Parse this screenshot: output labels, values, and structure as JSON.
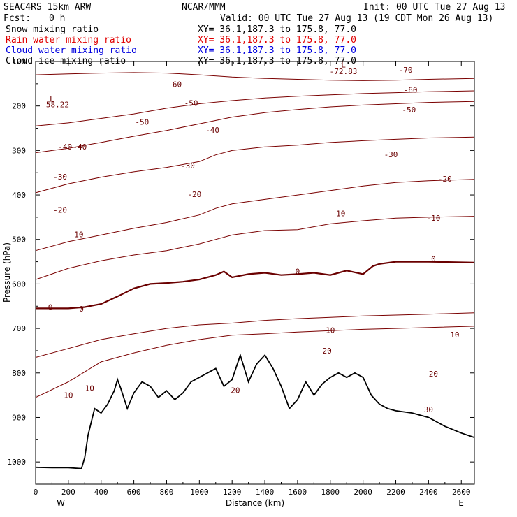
{
  "header": {
    "model": "SEAC4RS 15km ARW",
    "center": "NCAR/MMM",
    "init": "Init: 00 UTC Tue 27 Aug 13",
    "fcst_label": "Fcst:",
    "fcst_value": "0 h",
    "valid": "Valid: 00 UTC Tue 27 Aug 13 (19 CDT Mon 26 Aug 13)",
    "fields": [
      {
        "name": "Snow mixing ratio",
        "xy": "XY=  36.1,187.3 to 175.8, 77.0",
        "color": "#000000"
      },
      {
        "name": "Rain water mixing ratio",
        "xy": "XY=  36.1,187.3 to 175.8, 77.0",
        "color": "#e00000"
      },
      {
        "name": "Cloud water mixing ratio",
        "xy": "XY=  36.1,187.3 to 175.8, 77.0",
        "color": "#0000e0"
      },
      {
        "name": "Cloud ice mixing ratio",
        "xy": "XY=  36.1,187.3 to 175.8, 77.0",
        "color": "#000000"
      }
    ]
  },
  "chart_data": {
    "type": "line",
    "title": "",
    "xlabel": "Distance (km)",
    "ylabel": "Pressure (hPa)",
    "xlim": [
      0,
      2680
    ],
    "ylim": [
      1050,
      100
    ],
    "x_ticks": [
      0,
      200,
      400,
      600,
      800,
      1000,
      1200,
      1400,
      1600,
      1800,
      2000,
      2200,
      2400,
      2600
    ],
    "y_ticks": [
      100,
      200,
      300,
      400,
      500,
      600,
      700,
      800,
      900,
      1000
    ],
    "x_end_labels": {
      "left": "W",
      "right": "E"
    },
    "line_color": "#7a0000",
    "zero_line_color": "#6a0000",
    "terrain_color": "#000000",
    "series": [
      {
        "name": "0",
        "x": [
          0,
          100,
          200,
          300,
          400,
          500,
          600,
          700,
          800,
          900,
          1000,
          1100,
          1150,
          1200,
          1300,
          1400,
          1500,
          1600,
          1700,
          1800,
          1900,
          2000,
          2060,
          2100,
          2200,
          2400,
          2680
        ],
        "y": [
          655,
          655,
          655,
          652,
          645,
          628,
          610,
          600,
          598,
          595,
          590,
          580,
          572,
          585,
          578,
          575,
          580,
          578,
          575,
          580,
          570,
          578,
          560,
          555,
          550,
          550,
          552
        ]
      },
      {
        "name": "-10",
        "x": [
          0,
          200,
          400,
          600,
          800,
          1000,
          1100,
          1200,
          1400,
          1600,
          1800,
          2000,
          2200,
          2400,
          2680
        ],
        "y": [
          590,
          565,
          548,
          535,
          525,
          510,
          500,
          490,
          480,
          478,
          465,
          458,
          452,
          450,
          448
        ]
      },
      {
        "name": "-20",
        "x": [
          0,
          200,
          400,
          600,
          800,
          1000,
          1100,
          1200,
          1400,
          1600,
          1800,
          2000,
          2200,
          2400,
          2680
        ],
        "y": [
          525,
          505,
          490,
          475,
          462,
          445,
          430,
          420,
          410,
          400,
          390,
          380,
          372,
          368,
          365
        ]
      },
      {
        "name": "-30",
        "x": [
          0,
          200,
          400,
          600,
          800,
          1000,
          1100,
          1200,
          1400,
          1600,
          1800,
          2000,
          2200,
          2400,
          2680
        ],
        "y": [
          395,
          375,
          360,
          348,
          338,
          325,
          310,
          300,
          292,
          288,
          282,
          278,
          275,
          272,
          270
        ]
      },
      {
        "name": "-40",
        "x": [
          0,
          200,
          400,
          600,
          800,
          1000,
          1200,
          1400,
          1600,
          1800,
          2000,
          2200,
          2400,
          2680
        ],
        "y": [
          305,
          295,
          282,
          268,
          255,
          240,
          225,
          215,
          208,
          202,
          198,
          195,
          192,
          190
        ]
      },
      {
        "name": "-50",
        "x": [
          0,
          200,
          400,
          600,
          800,
          1000,
          1200,
          1400,
          1600,
          1800,
          2000,
          2200,
          2400,
          2680
        ],
        "y": [
          245,
          238,
          228,
          218,
          205,
          195,
          188,
          182,
          178,
          175,
          172,
          170,
          168,
          166
        ]
      },
      {
        "name": "-60",
        "x": [
          0,
          200,
          400,
          600,
          800,
          1000,
          1200,
          1400,
          1600,
          1800,
          2000,
          2200,
          2400,
          2680
        ],
        "y": [
          130,
          128,
          126,
          125,
          126,
          130,
          135,
          138,
          140,
          142,
          143,
          142,
          140,
          138
        ]
      },
      {
        "name": "10",
        "x": [
          0,
          200,
          400,
          600,
          800,
          1000,
          1200,
          1400,
          1600,
          1800,
          2000,
          2200,
          2400,
          2680
        ],
        "y": [
          855,
          820,
          775,
          755,
          738,
          725,
          715,
          712,
          708,
          705,
          702,
          700,
          698,
          695
        ]
      },
      {
        "name": "20",
        "x": [
          0,
          200,
          400,
          600,
          800,
          1000,
          1200,
          1400,
          1600,
          1800,
          2000,
          2200,
          2400,
          2680
        ],
        "y": [
          765,
          745,
          725,
          712,
          700,
          692,
          688,
          682,
          678,
          675,
          672,
          670,
          668,
          665
        ]
      }
    ],
    "terrain": {
      "x": [
        0,
        100,
        200,
        280,
        300,
        320,
        360,
        400,
        440,
        480,
        500,
        520,
        560,
        600,
        650,
        700,
        750,
        800,
        850,
        900,
        950,
        1000,
        1050,
        1100,
        1150,
        1200,
        1250,
        1300,
        1350,
        1400,
        1450,
        1500,
        1550,
        1600,
        1650,
        1700,
        1750,
        1800,
        1850,
        1900,
        1950,
        2000,
        2050,
        2100,
        2150,
        2200,
        2300,
        2400,
        2500,
        2600,
        2680
      ],
      "y": [
        1012,
        1013,
        1013,
        1015,
        990,
        940,
        880,
        890,
        870,
        840,
        815,
        835,
        880,
        845,
        820,
        830,
        855,
        840,
        860,
        845,
        820,
        810,
        800,
        790,
        830,
        815,
        760,
        820,
        780,
        760,
        790,
        830,
        880,
        860,
        820,
        850,
        825,
        810,
        800,
        810,
        800,
        810,
        850,
        870,
        880,
        885,
        890,
        900,
        920,
        935,
        945
      ]
    },
    "annotations": [
      {
        "text": "L",
        "x": 100,
        "y": 190
      },
      {
        "text": "-58.22",
        "x": 120,
        "y": 203
      },
      {
        "text": "-72.83",
        "x": 1880,
        "y": 128
      },
      {
        "text": "L",
        "x": 1880,
        "y": 113
      },
      {
        "text": "-70",
        "x": 2260,
        "y": 125
      }
    ],
    "contour_labels": [
      {
        "text": "-60",
        "x": 850,
        "y": 157
      },
      {
        "text": "-60",
        "x": 2290,
        "y": 170
      },
      {
        "text": "-50",
        "x": 950,
        "y": 200
      },
      {
        "text": "-50",
        "x": 650,
        "y": 242
      },
      {
        "text": "-50",
        "x": 2280,
        "y": 215
      },
      {
        "text": "-40",
        "x": 180,
        "y": 298
      },
      {
        "text": "-40",
        "x": 270,
        "y": 298
      },
      {
        "text": "-40",
        "x": 1080,
        "y": 260
      },
      {
        "text": "-30",
        "x": 150,
        "y": 365
      },
      {
        "text": "-30",
        "x": 930,
        "y": 340
      },
      {
        "text": "-30",
        "x": 2170,
        "y": 315
      },
      {
        "text": "-20",
        "x": 150,
        "y": 440
      },
      {
        "text": "-20",
        "x": 970,
        "y": 405
      },
      {
        "text": "-20",
        "x": 2500,
        "y": 370
      },
      {
        "text": "-10",
        "x": 250,
        "y": 495
      },
      {
        "text": "-10",
        "x": 1850,
        "y": 448
      },
      {
        "text": "-10",
        "x": 2430,
        "y": 458
      },
      {
        "text": "0",
        "x": 90,
        "y": 658
      },
      {
        "text": "0",
        "x": 280,
        "y": 662
      },
      {
        "text": "0",
        "x": 1600,
        "y": 578
      },
      {
        "text": "0",
        "x": 2430,
        "y": 550
      },
      {
        "text": "10",
        "x": 200,
        "y": 856
      },
      {
        "text": "10",
        "x": 330,
        "y": 840
      },
      {
        "text": "10",
        "x": 1800,
        "y": 710
      },
      {
        "text": "10",
        "x": 2560,
        "y": 720
      },
      {
        "text": "20",
        "x": 1780,
        "y": 756
      },
      {
        "text": "20",
        "x": 2430,
        "y": 808
      },
      {
        "text": "20",
        "x": 1220,
        "y": 845
      },
      {
        "text": "30",
        "x": 2400,
        "y": 888
      }
    ]
  }
}
